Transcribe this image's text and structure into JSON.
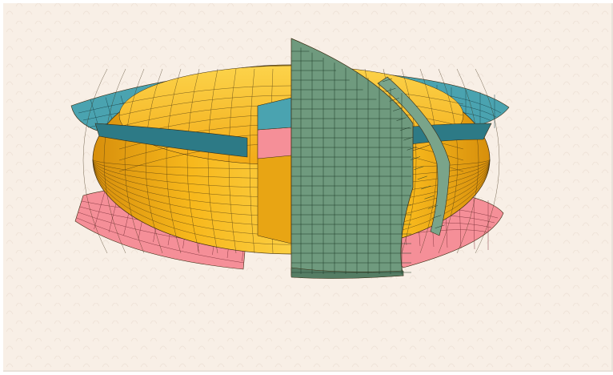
{
  "view": {
    "background_color": "#f8efe6",
    "pattern_color": "#efe3d8"
  },
  "model": {
    "description_visible_text": "",
    "colors": {
      "torus": "#f7b81c",
      "torus_shade": "#e49a10",
      "torus_light": "#fcd34a",
      "upper_shell": "#4aa3b0",
      "upper_shell_dark": "#2d7a86",
      "lower_shell": "#f58f98",
      "lower_shell_dark": "#d96c77",
      "cutting_plane": "#6f9a7e",
      "cutting_plane_dark": "#557d64",
      "mesh_line": "#3a2a10"
    }
  }
}
